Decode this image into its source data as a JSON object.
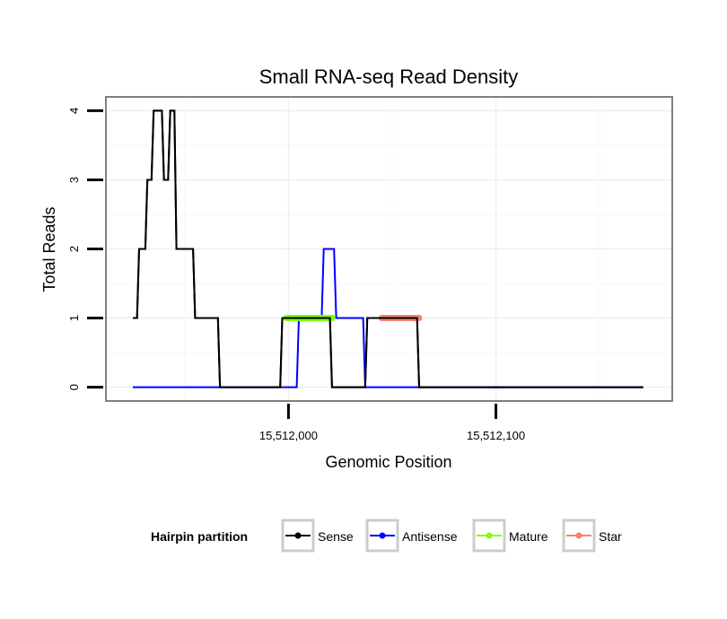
{
  "chart_data": {
    "type": "line",
    "title": "Small RNA-seq Read Density",
    "xlabel": "Genomic Position",
    "ylabel": "Total Reads",
    "xlim": [
      15511912,
      15512185
    ],
    "ylim": [
      -0.2,
      4.2
    ],
    "x_ticks": [
      {
        "value": 15512000,
        "label": "15,512,000"
      },
      {
        "value": 15512100,
        "label": "15,512,100"
      }
    ],
    "y_ticks": [
      {
        "value": 0,
        "label": "0"
      },
      {
        "value": 1,
        "label": "1"
      },
      {
        "value": 2,
        "label": "2"
      },
      {
        "value": 3,
        "label": "3"
      },
      {
        "value": 4,
        "label": "4"
      }
    ],
    "x_minor_grid": [
      15511950,
      15512050,
      15512150
    ],
    "y_minor_grid": [
      0.5,
      1.5,
      2.5,
      3.5
    ],
    "legend": {
      "title": "Hairpin partition",
      "position": "bottom",
      "entries": [
        {
          "name": "Sense",
          "color": "#000000"
        },
        {
          "name": "Antisense",
          "color": "#0000ff"
        },
        {
          "name": "Mature",
          "color": "#7fff00"
        },
        {
          "name": "Star",
          "color": "#fa8072"
        }
      ]
    },
    "series": [
      {
        "name": "Sense",
        "color": "#000000",
        "x": [
          15511925,
          15511927,
          15511928,
          15511931,
          15511932,
          15511934,
          15511935,
          15511939,
          15511940,
          15511942,
          15511943,
          15511945,
          15511946,
          15511948,
          15511949,
          15511954,
          15511955,
          15511966,
          15511967,
          15511996,
          15511997,
          15512020,
          15512021,
          15512037,
          15512038,
          15512062,
          15512063,
          15512171
        ],
        "y": [
          1,
          1,
          2,
          2,
          3,
          3,
          4,
          4,
          3,
          3,
          4,
          4,
          2,
          2,
          2,
          2,
          1,
          1,
          0,
          0,
          1,
          1,
          0,
          0,
          1,
          1,
          0,
          0
        ]
      },
      {
        "name": "Antisense",
        "color": "#0000ff",
        "x": [
          15511925,
          15512004,
          15512005,
          15512016,
          15512017,
          15512022,
          15512023,
          15512036,
          15512037,
          15512171
        ],
        "y": [
          0,
          0,
          1,
          1,
          2,
          2,
          1,
          1,
          0,
          0
        ]
      },
      {
        "name": "Mature",
        "color": "#7fff00",
        "x": [
          15511999,
          15512021
        ],
        "y": [
          1,
          1
        ]
      },
      {
        "name": "Star",
        "color": "#fa8072",
        "x": [
          15512045,
          15512063
        ],
        "y": [
          1,
          1
        ]
      }
    ]
  }
}
